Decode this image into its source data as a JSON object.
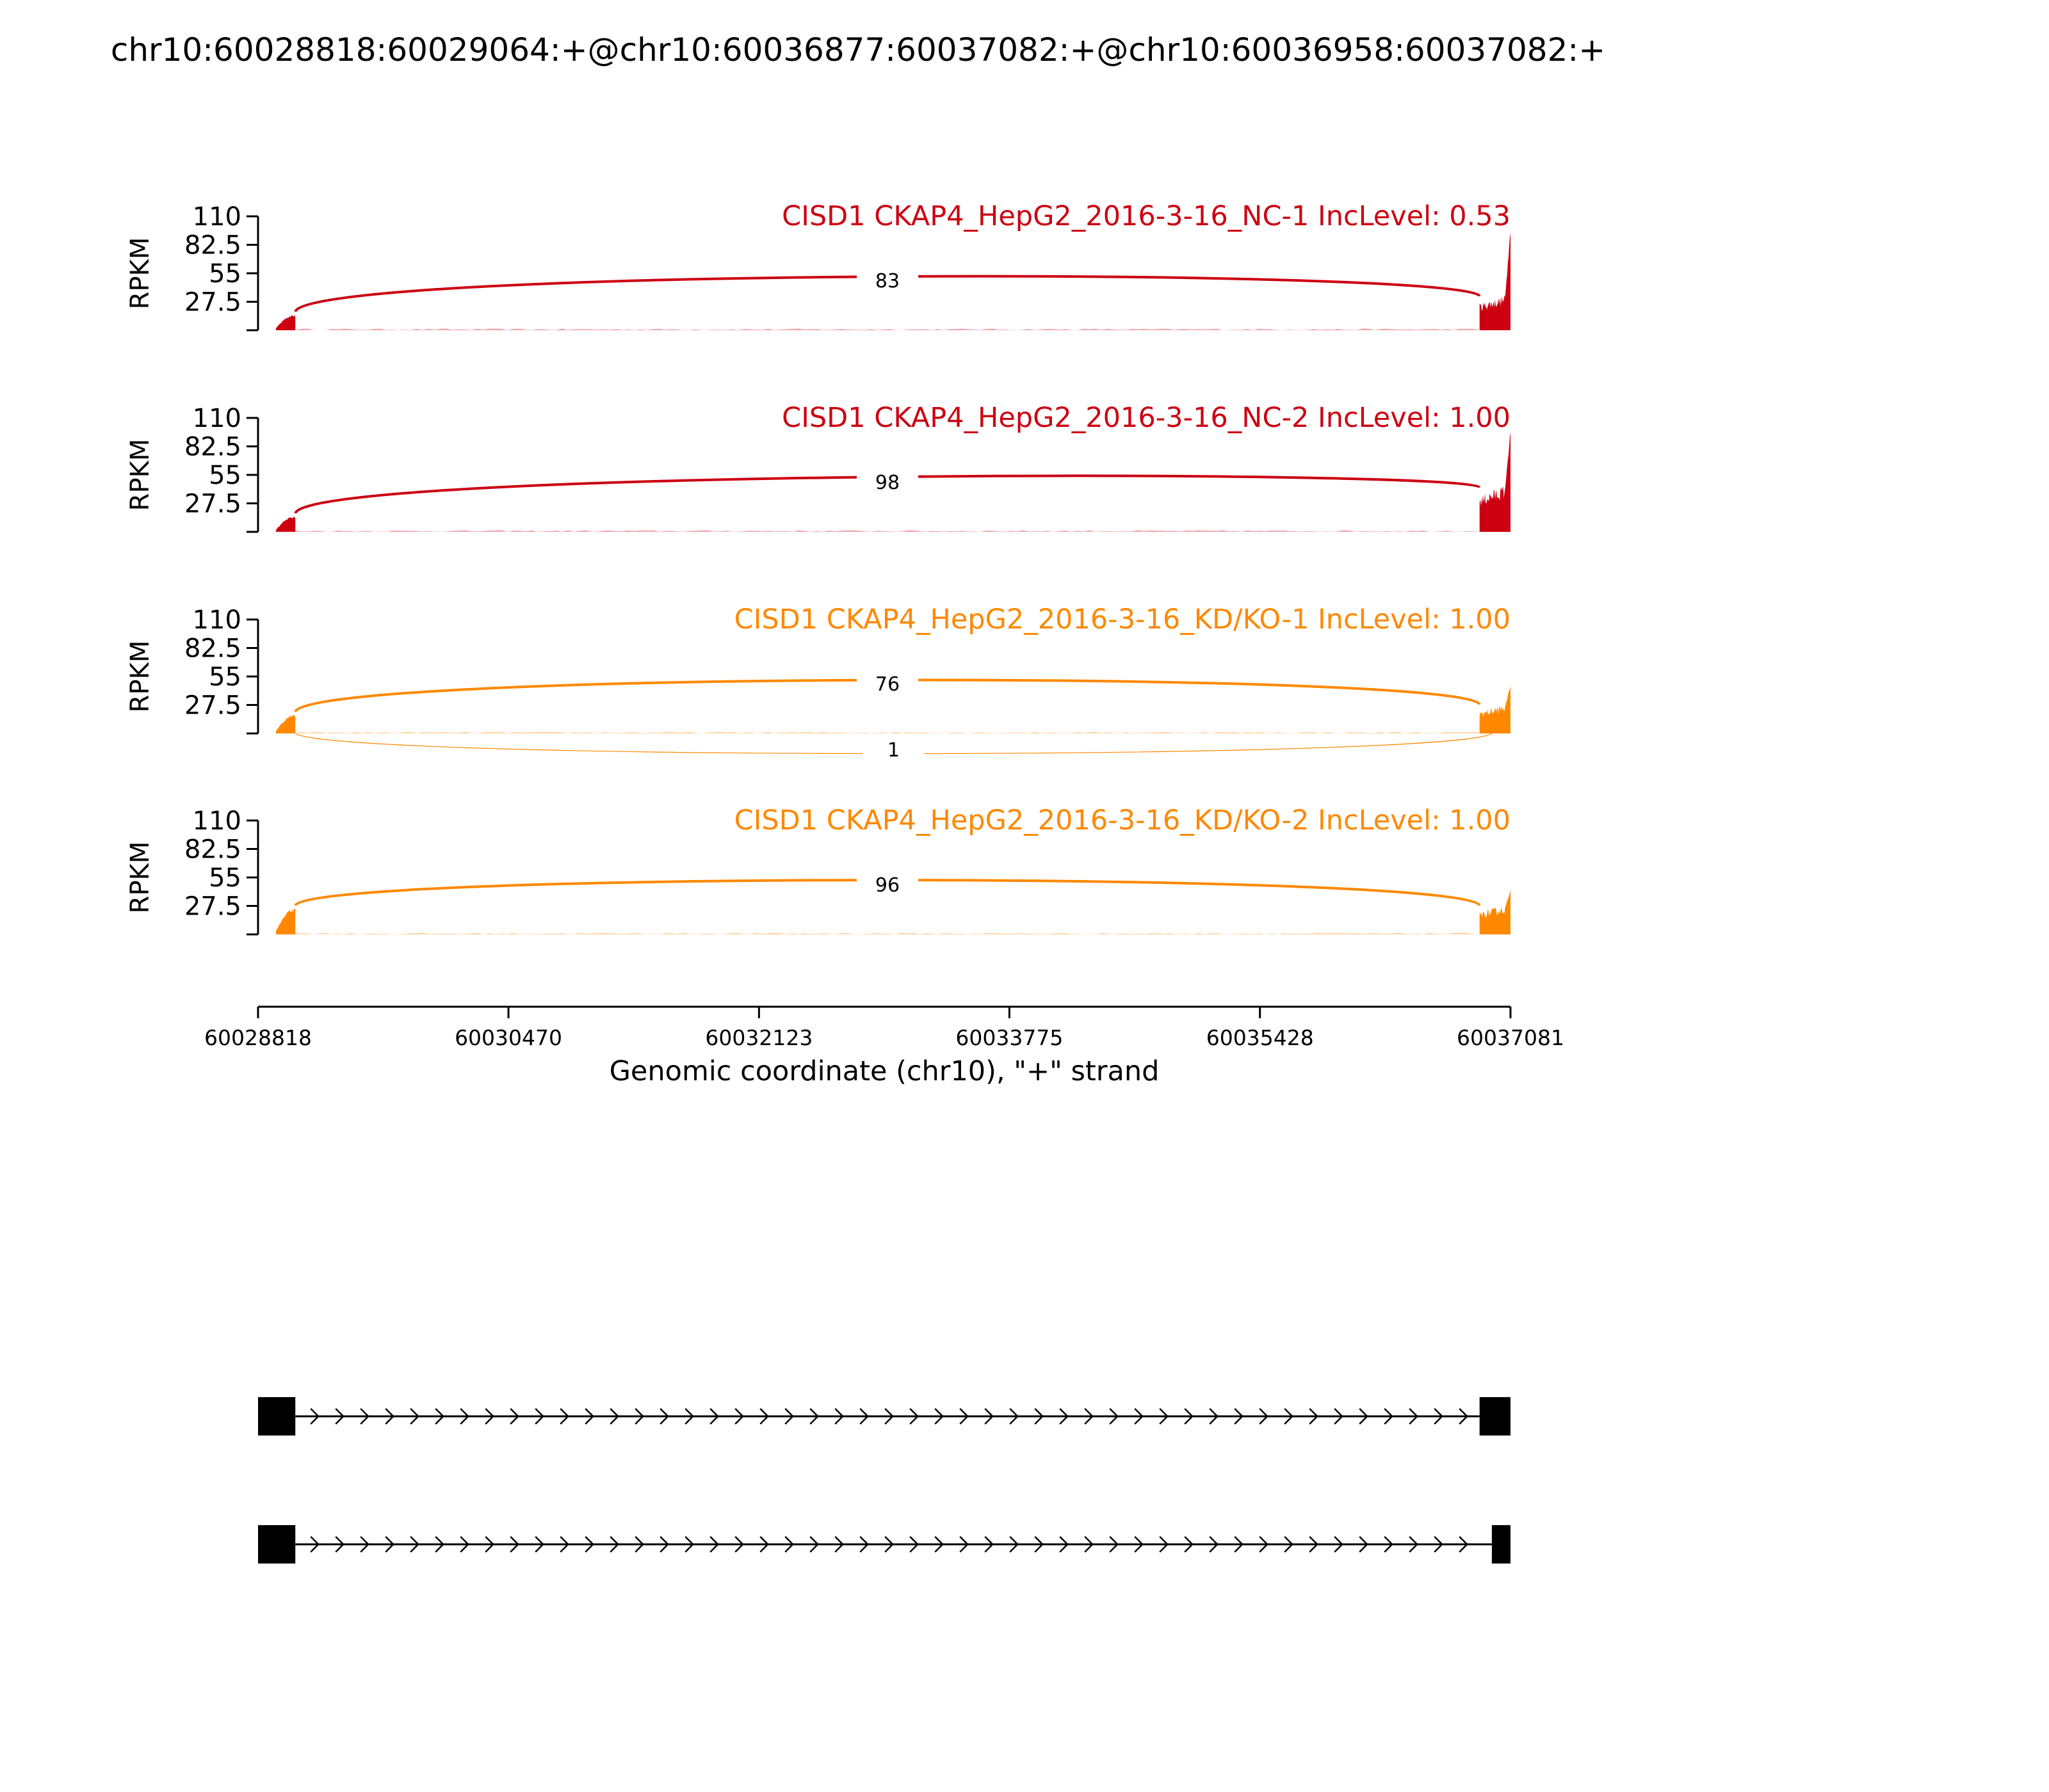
{
  "title": "chr10:60028818:60029064:+@chr10:60036877:60037082:+@chr10:60036958:60037082:+",
  "chart_data": {
    "type": "area",
    "title": "chr10:60028818:60029064:+@chr10:60036877:60037082:+@chr10:60036958:60037082:+",
    "xlabel": "Genomic coordinate (chr10), \"+\" strand",
    "ylabel": "RPKM",
    "xlim": [
      60028818,
      60037081
    ],
    "ylim": [
      0,
      110
    ],
    "xticks": [
      "60028818",
      "60030470",
      "60032123",
      "60033775",
      "60035428",
      "60037081"
    ],
    "yticks": [
      "27.5",
      "55",
      "82.5",
      "110"
    ],
    "exon1": [
      60028818,
      60029064
    ],
    "exon2_long": [
      60036877,
      60037082
    ],
    "exon2_short": [
      60036958,
      60037082
    ],
    "panels": [
      {
        "label": "CISD1 CKAP4_HepG2_2016-3-16_NC-1 IncLevel: 0.53",
        "color": "#cc0011",
        "exon1_peak": 15,
        "exon2_base": 30,
        "exon2_peak": 100,
        "junctions": [
          {
            "count": "83",
            "from": 60029064,
            "to": 60036877,
            "side": "above"
          }
        ]
      },
      {
        "label": "CISD1 CKAP4_HepG2_2016-3-16_NC-2 IncLevel: 1.00",
        "color": "#cc0011",
        "exon1_peak": 15,
        "exon2_base": 40,
        "exon2_peak": 100,
        "junctions": [
          {
            "count": "98",
            "from": 60029064,
            "to": 60036877,
            "side": "above"
          }
        ]
      },
      {
        "label": "CISD1 CKAP4_HepG2_2016-3-16_KD/KO-1 IncLevel: 1.00",
        "color": "#ff8800",
        "exon1_peak": 18,
        "exon2_base": 25,
        "exon2_peak": 48,
        "junctions": [
          {
            "count": "76",
            "from": 60029064,
            "to": 60036877,
            "side": "above"
          },
          {
            "count": "1",
            "from": 60029064,
            "to": 60036958,
            "side": "below"
          }
        ]
      },
      {
        "label": "CISD1 CKAP4_HepG2_2016-3-16_KD/KO-2 IncLevel: 1.00",
        "color": "#ff8800",
        "exon1_peak": 25,
        "exon2_base": 25,
        "exon2_peak": 45,
        "junctions": [
          {
            "count": "96",
            "from": 60029064,
            "to": 60036877,
            "side": "above"
          }
        ]
      }
    ],
    "isoforms": [
      {
        "exons": [
          [
            60028818,
            60029064
          ],
          [
            60036877,
            60037082
          ]
        ]
      },
      {
        "exons": [
          [
            60028818,
            60029064
          ],
          [
            60036958,
            60037082
          ]
        ]
      }
    ]
  }
}
